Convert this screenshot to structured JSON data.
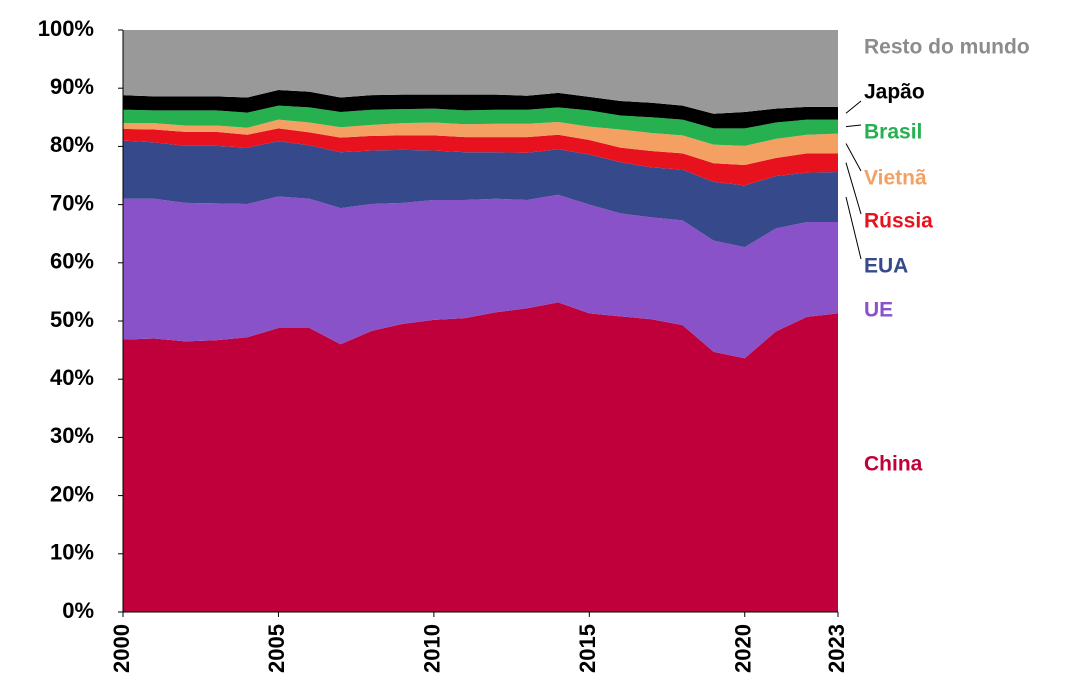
{
  "chart_data": {
    "type": "stacked_area",
    "x": [
      2000,
      2001,
      2002,
      2003,
      2004,
      2005,
      2006,
      2007,
      2008,
      2009,
      2010,
      2011,
      2012,
      2013,
      2014,
      2015,
      2016,
      2017,
      2018,
      2019,
      2020,
      2021,
      2022,
      2023
    ],
    "xlim": [
      2000,
      2023
    ],
    "xticks": [
      2000,
      2005,
      2010,
      2015,
      2020,
      2023
    ],
    "ylim": [
      0,
      100
    ],
    "yticks": [
      {
        "value": 0,
        "label": "0%"
      },
      {
        "value": 10,
        "label": "10%"
      },
      {
        "value": 20,
        "label": "20%"
      },
      {
        "value": 30,
        "label": "30%"
      },
      {
        "value": 40,
        "label": "40%"
      },
      {
        "value": 50,
        "label": "50%"
      },
      {
        "value": 60,
        "label": "60%"
      },
      {
        "value": 70,
        "label": "70%"
      },
      {
        "value": 80,
        "label": "80%"
      },
      {
        "value": 90,
        "label": "90%"
      },
      {
        "value": 100,
        "label": "100%"
      }
    ],
    "series": [
      {
        "name": "China",
        "color": "#c0003a",
        "values": [
          46.8,
          47,
          46.5,
          46.7,
          47.2,
          48.8,
          48.8,
          46,
          48.3,
          49.5,
          50.2,
          50.5,
          51.5,
          52.2,
          53.2,
          51.3,
          50.8,
          50.3,
          49.3,
          44.7,
          43.6,
          48.2,
          50.7,
          51.3
        ]
      },
      {
        "name": "UE",
        "color": "#8a52c9",
        "values": [
          24.2,
          24,
          23.8,
          23.5,
          22.9,
          22.6,
          22.2,
          23.4,
          21.8,
          20.8,
          20.6,
          20.3,
          19.5,
          18.6,
          18.5,
          18.7,
          17.7,
          17.5,
          18,
          19.1,
          19.1,
          17.7,
          16.3,
          15.7
        ]
      },
      {
        "name": "EUA",
        "color": "#36498a",
        "values": [
          10,
          9.7,
          9.8,
          9.9,
          9.7,
          9.5,
          9.2,
          9.6,
          9.2,
          9.1,
          8.5,
          8.2,
          8,
          8.1,
          7.8,
          8.6,
          8.8,
          8.6,
          8.7,
          10.1,
          10.6,
          9,
          8.5,
          8.6
        ]
      },
      {
        "name": "Rússia",
        "color": "#e8121e",
        "values": [
          2,
          2.2,
          2.4,
          2.4,
          2.2,
          2.2,
          2.2,
          2.5,
          2.5,
          2.5,
          2.6,
          2.6,
          2.6,
          2.7,
          2.5,
          2.5,
          2.5,
          2.8,
          2.8,
          3.2,
          3.5,
          3.1,
          3.3,
          3.2
        ]
      },
      {
        "name": "Vietnã",
        "color": "#f4a062",
        "values": [
          1,
          1.1,
          1.1,
          1.1,
          1.2,
          1.5,
          1.7,
          1.8,
          1.9,
          2.1,
          2.2,
          2.2,
          2.3,
          2.3,
          2.2,
          2.3,
          3.1,
          3.1,
          3.1,
          3.2,
          3.3,
          3.3,
          3.2,
          3.4
        ]
      },
      {
        "name": "Brasil",
        "color": "#26b050",
        "values": [
          2.3,
          2.2,
          2.6,
          2.6,
          2.6,
          2.4,
          2.6,
          2.6,
          2.6,
          2.4,
          2.4,
          2.4,
          2.4,
          2.4,
          2.5,
          2.8,
          2.4,
          2.7,
          2.7,
          2.8,
          3,
          2.8,
          2.6,
          2.4
        ]
      },
      {
        "name": "Japão",
        "color": "#000000",
        "values": [
          2.5,
          2.4,
          2.4,
          2.4,
          2.6,
          2.7,
          2.7,
          2.5,
          2.5,
          2.5,
          2.4,
          2.7,
          2.6,
          2.4,
          2.5,
          2.3,
          2.5,
          2.5,
          2.4,
          2.5,
          2.8,
          2.4,
          2.2,
          2.2
        ]
      },
      {
        "name": "Resto do mundo",
        "color": "#999999",
        "values": [
          11.2,
          11.4,
          11.4,
          11.4,
          11.6,
          10.3,
          10.6,
          11.6,
          11.2,
          11.1,
          11.1,
          11.1,
          11.1,
          11.3,
          10.8,
          11.5,
          12.2,
          12.5,
          13,
          14.4,
          14.1,
          13.5,
          13.2,
          13.2
        ]
      }
    ]
  }
}
